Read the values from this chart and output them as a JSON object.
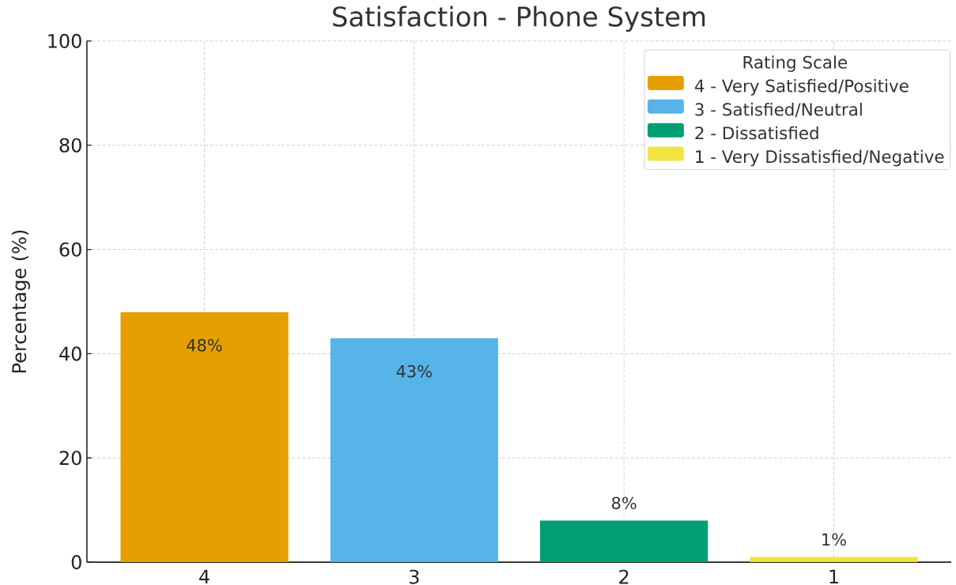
{
  "chart_data": {
    "type": "bar",
    "title": "Satisfaction - Phone System",
    "ylabel": "Percentage (%)",
    "legend_title": "Rating Scale",
    "categories": [
      "4",
      "3",
      "2",
      "1"
    ],
    "series": [
      {
        "name": "4 - Very Satisfied/Positive",
        "color": "#e69f00",
        "values": [
          48,
          null,
          null,
          null
        ],
        "value_labels": [
          "48%",
          null,
          null,
          null
        ]
      },
      {
        "name": "3 - Satisfied/Neutral",
        "color": "#56b4e9",
        "values": [
          null,
          43,
          null,
          null
        ],
        "value_labels": [
          null,
          "43%",
          null,
          null
        ]
      },
      {
        "name": "2 - Dissatisfied",
        "color": "#009e73",
        "values": [
          null,
          null,
          8,
          null
        ],
        "value_labels": [
          null,
          null,
          "8%",
          null
        ]
      },
      {
        "name": "1 - Very Dissatisfied/Negative",
        "color": "#f0e442",
        "values": [
          null,
          null,
          null,
          1
        ],
        "value_labels": [
          null,
          null,
          null,
          "1%"
        ]
      }
    ],
    "ylim": [
      0,
      100
    ],
    "yticks": [
      0,
      20,
      40,
      60,
      80,
      100
    ],
    "grid": true,
    "legend": "top right"
  }
}
